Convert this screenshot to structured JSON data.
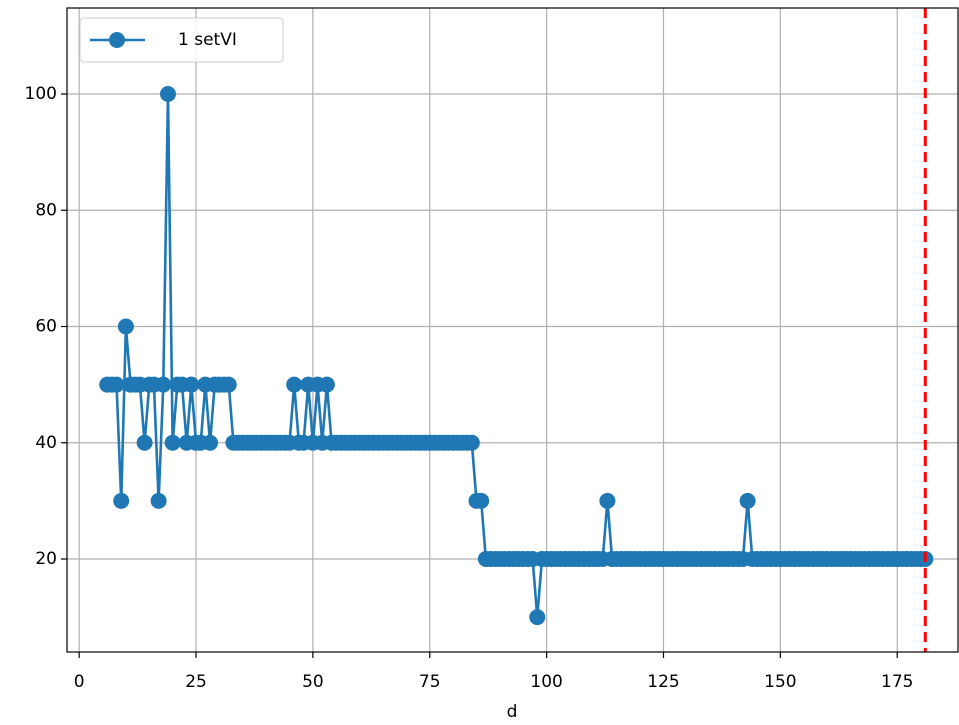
{
  "chart_data": {
    "type": "line",
    "xlabel": "d",
    "x": [
      6,
      7,
      8,
      9,
      10,
      11,
      12,
      13,
      14,
      15,
      16,
      17,
      18,
      19,
      20,
      21,
      22,
      23,
      24,
      25,
      26,
      27,
      28,
      29,
      30,
      31,
      32,
      33,
      34,
      35,
      36,
      37,
      38,
      39,
      40,
      41,
      42,
      43,
      44,
      45,
      46,
      47,
      48,
      49,
      50,
      51,
      52,
      53,
      54,
      55,
      56,
      57,
      58,
      59,
      60,
      61,
      62,
      63,
      64,
      65,
      66,
      67,
      68,
      69,
      70,
      71,
      72,
      73,
      74,
      75,
      76,
      77,
      78,
      79,
      80,
      81,
      82,
      83,
      84,
      85,
      86,
      87,
      88,
      89,
      90,
      91,
      92,
      93,
      94,
      95,
      96,
      97,
      98,
      99,
      100,
      101,
      102,
      103,
      104,
      105,
      106,
      107,
      108,
      109,
      110,
      111,
      112,
      113,
      114,
      115,
      116,
      117,
      118,
      119,
      120,
      121,
      122,
      123,
      124,
      125,
      126,
      127,
      128,
      129,
      130,
      131,
      132,
      133,
      134,
      135,
      136,
      137,
      138,
      139,
      140,
      141,
      142,
      143,
      144,
      145,
      146,
      147,
      148,
      149,
      150,
      151,
      152,
      153,
      154,
      155,
      156,
      157,
      158,
      159,
      160,
      161,
      162,
      163,
      164,
      165,
      166,
      167,
      168,
      169,
      170,
      171,
      172,
      173,
      174,
      175,
      176,
      177,
      178,
      179,
      180,
      181
    ],
    "series": [
      {
        "name": "1 setVI",
        "color": "#1f77b4",
        "values": [
          50,
          50,
          50,
          30,
          60,
          50,
          50,
          50,
          40,
          50,
          50,
          30,
          50,
          100,
          40,
          50,
          50,
          40,
          50,
          40,
          40,
          50,
          40,
          50,
          50,
          50,
          50,
          40,
          40,
          40,
          40,
          40,
          40,
          40,
          40,
          40,
          40,
          40,
          40,
          40,
          50,
          40,
          40,
          50,
          40,
          50,
          40,
          50,
          40,
          40,
          40,
          40,
          40,
          40,
          40,
          40,
          40,
          40,
          40,
          40,
          40,
          40,
          40,
          40,
          40,
          40,
          40,
          40,
          40,
          40,
          40,
          40,
          40,
          40,
          40,
          40,
          40,
          40,
          40,
          30,
          30,
          20,
          20,
          20,
          20,
          20,
          20,
          20,
          20,
          20,
          20,
          20,
          10,
          20,
          20,
          20,
          20,
          20,
          20,
          20,
          20,
          20,
          20,
          20,
          20,
          20,
          20,
          30,
          20,
          20,
          20,
          20,
          20,
          20,
          20,
          20,
          20,
          20,
          20,
          20,
          20,
          20,
          20,
          20,
          20,
          20,
          20,
          20,
          20,
          20,
          20,
          20,
          20,
          20,
          20,
          20,
          20,
          30,
          20,
          20,
          20,
          20,
          20,
          20,
          20,
          20,
          20,
          20,
          20,
          20,
          20,
          20,
          20,
          20,
          20,
          20,
          20,
          20,
          20,
          20,
          20,
          20,
          20,
          20,
          20,
          20,
          20,
          20,
          20,
          20,
          20,
          20,
          20,
          20,
          20,
          20
        ]
      }
    ],
    "xlim": [
      -2.6,
      188
    ],
    "ylim": [
      4,
      114.8
    ],
    "xticks": [
      0,
      25,
      50,
      75,
      100,
      125,
      150,
      175
    ],
    "yticks": [
      20,
      40,
      60,
      80,
      100
    ],
    "grid": true,
    "legend": "upper left",
    "vline": {
      "x": 181,
      "color": "#ff0000"
    }
  }
}
